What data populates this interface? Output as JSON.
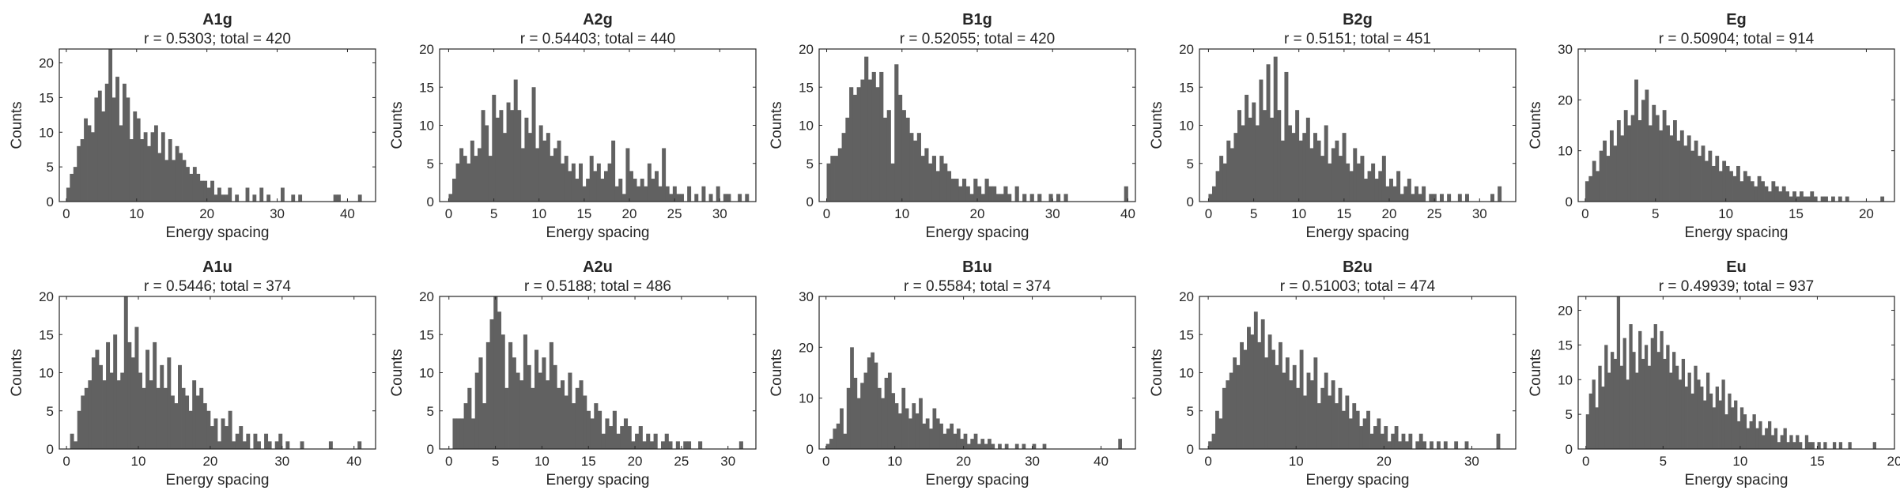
{
  "colors": {
    "bar": "#616161",
    "axis": "#262626",
    "background": "#ffffff"
  },
  "chart_data": [
    {
      "type": "bar",
      "title": "A1g",
      "subtitle": "r = 0.5303; total = 420",
      "xlabel": "Energy spacing",
      "ylabel": "Counts",
      "xlim": [
        -1,
        44
      ],
      "ylim": [
        0,
        22
      ],
      "xticks": [
        0,
        10,
        20,
        30,
        40
      ],
      "yticks": [
        0,
        5,
        10,
        15,
        20
      ],
      "bin_start": 0,
      "bin_width": 0.5,
      "values": [
        2,
        4,
        5,
        8,
        9,
        12,
        11,
        10,
        15,
        16,
        13,
        17,
        22,
        15,
        18,
        11,
        17,
        15,
        9,
        13,
        12,
        9,
        10,
        8,
        10,
        11,
        7,
        10,
        6,
        9,
        6,
        8,
        7,
        6,
        5,
        4,
        5,
        4,
        3,
        3,
        2,
        3,
        1,
        2,
        1,
        1,
        2,
        0,
        1,
        0,
        0,
        2,
        0,
        1,
        0,
        2,
        0,
        1,
        0,
        0,
        0,
        2,
        0,
        0,
        1,
        0,
        1,
        0,
        0,
        0,
        0,
        0,
        0,
        0,
        0,
        0,
        1,
        1,
        0,
        0,
        0,
        0,
        0,
        1
      ]
    },
    {
      "type": "bar",
      "title": "A2g",
      "subtitle": "r = 0.54403; total = 440",
      "xlabel": "Energy spacing",
      "ylabel": "Counts",
      "xlim": [
        -1,
        34
      ],
      "ylim": [
        0,
        20
      ],
      "xticks": [
        0,
        5,
        10,
        15,
        20,
        25,
        30
      ],
      "yticks": [
        0,
        5,
        10,
        15,
        20
      ],
      "bin_start": 0,
      "bin_width": 0.4,
      "values": [
        1,
        3,
        5,
        7,
        6,
        5,
        8,
        6,
        7,
        12,
        10,
        6,
        14,
        11,
        12,
        9,
        13,
        12,
        16,
        12,
        7,
        11,
        9,
        15,
        7,
        10,
        8,
        9,
        6,
        7,
        8,
        5,
        6,
        4,
        5,
        3,
        5,
        2,
        3,
        6,
        4,
        5,
        3,
        4,
        5,
        8,
        2,
        3,
        1,
        7,
        4,
        3,
        2,
        3,
        2,
        5,
        3,
        4,
        2,
        7,
        2,
        1,
        2,
        1,
        1,
        0,
        2,
        0,
        1,
        0,
        2,
        0,
        1,
        0,
        2,
        0,
        1,
        1,
        0,
        0,
        1,
        0,
        1
      ]
    },
    {
      "type": "bar",
      "title": "B1g",
      "subtitle": "r = 0.52055; total = 420",
      "xlabel": "Energy spacing",
      "ylabel": "Counts",
      "xlim": [
        -1,
        41
      ],
      "ylim": [
        0,
        20
      ],
      "xticks": [
        0,
        10,
        20,
        30,
        40
      ],
      "yticks": [
        0,
        5,
        10,
        15,
        20
      ],
      "bin_start": 0,
      "bin_width": 0.5,
      "values": [
        5,
        6,
        6,
        7,
        9,
        11,
        15,
        14,
        15,
        16,
        19,
        16,
        17,
        15,
        17,
        11,
        12,
        5,
        18,
        14,
        12,
        11,
        9,
        8,
        9,
        6,
        7,
        5,
        6,
        4,
        6,
        5,
        4,
        3,
        3,
        2,
        3,
        2,
        1,
        3,
        2,
        1,
        3,
        2,
        2,
        1,
        1,
        2,
        1,
        0,
        2,
        0,
        1,
        0,
        1,
        0,
        1,
        0,
        0,
        1,
        0,
        1,
        0,
        1,
        0,
        0,
        0,
        0,
        0,
        0,
        0,
        0,
        0,
        0,
        0,
        0,
        0,
        0,
        0,
        2
      ]
    },
    {
      "type": "bar",
      "title": "B2g",
      "subtitle": "r = 0.5151; total = 451",
      "xlabel": "Energy spacing",
      "ylabel": "Counts",
      "xlim": [
        -1,
        34
      ],
      "ylim": [
        0,
        20
      ],
      "xticks": [
        0,
        5,
        10,
        15,
        20,
        25,
        30
      ],
      "yticks": [
        0,
        5,
        10,
        15,
        20
      ],
      "bin_start": 0,
      "bin_width": 0.4,
      "values": [
        1,
        2,
        4,
        6,
        5,
        8,
        7,
        9,
        12,
        10,
        14,
        11,
        13,
        10,
        16,
        12,
        18,
        11,
        19,
        12,
        8,
        17,
        10,
        9,
        12,
        8,
        9,
        11,
        7,
        9,
        8,
        6,
        10,
        5,
        7,
        8,
        6,
        9,
        5,
        4,
        7,
        5,
        6,
        3,
        4,
        5,
        3,
        4,
        6,
        2,
        3,
        2,
        4,
        1,
        2,
        3,
        1,
        2,
        1,
        2,
        0,
        1,
        1,
        0,
        1,
        0,
        1,
        0,
        0,
        1,
        0,
        1,
        0,
        0,
        0,
        0,
        0,
        0,
        1,
        0,
        2
      ]
    },
    {
      "type": "bar",
      "title": "Eg",
      "subtitle": "r = 0.50904; total = 914",
      "xlabel": "Energy spacing",
      "ylabel": "Counts",
      "xlim": [
        -0.5,
        22
      ],
      "ylim": [
        0,
        30
      ],
      "xticks": [
        0,
        5,
        10,
        15,
        20
      ],
      "yticks": [
        0,
        10,
        20,
        30
      ],
      "bin_start": 0,
      "bin_width": 0.25,
      "values": [
        4,
        5,
        8,
        6,
        10,
        12,
        9,
        14,
        11,
        16,
        13,
        18,
        15,
        17,
        24,
        16,
        20,
        22,
        15,
        19,
        17,
        14,
        18,
        15,
        13,
        16,
        12,
        14,
        11,
        13,
        10,
        12,
        9,
        11,
        8,
        10,
        7,
        9,
        6,
        8,
        7,
        6,
        5,
        7,
        4,
        6,
        5,
        4,
        3,
        5,
        4,
        3,
        2,
        4,
        3,
        2,
        3,
        2,
        1,
        2,
        1,
        2,
        1,
        1,
        2,
        1,
        0,
        1,
        1,
        0,
        1,
        0,
        1,
        0,
        1,
        0,
        0,
        0,
        0,
        0,
        0,
        0,
        0,
        0,
        1
      ]
    },
    {
      "type": "bar",
      "title": "A1u",
      "subtitle": "r = 0.5446; total = 374",
      "xlabel": "Energy spacing",
      "ylabel": "Counts",
      "xlim": [
        -1,
        43
      ],
      "ylim": [
        0,
        20
      ],
      "xticks": [
        0,
        10,
        20,
        30,
        40
      ],
      "yticks": [
        0,
        5,
        10,
        15,
        20
      ],
      "bin_start": 0,
      "bin_width": 0.5,
      "values": [
        0,
        2,
        1,
        5,
        7,
        8,
        9,
        12,
        13,
        11,
        9,
        14,
        10,
        15,
        9,
        10,
        20,
        14,
        12,
        16,
        10,
        8,
        13,
        9,
        14,
        8,
        11,
        8,
        12,
        7,
        6,
        11,
        8,
        7,
        5,
        9,
        7,
        8,
        6,
        5,
        3,
        4,
        1,
        4,
        3,
        5,
        1,
        2,
        3,
        1,
        2,
        0,
        2,
        1,
        0,
        2,
        1,
        0,
        1,
        2,
        0,
        1,
        0,
        0,
        0,
        1,
        0,
        0,
        0,
        0,
        0,
        0,
        0,
        1,
        0,
        0,
        0,
        0,
        0,
        0,
        0,
        1
      ]
    },
    {
      "type": "bar",
      "title": "A2u",
      "subtitle": "r = 0.5188; total = 486",
      "xlabel": "Energy spacing",
      "ylabel": "Counts",
      "xlim": [
        -1,
        33
      ],
      "ylim": [
        0,
        20
      ],
      "xticks": [
        0,
        5,
        10,
        15,
        20,
        25,
        30
      ],
      "yticks": [
        0,
        5,
        10,
        15,
        20
      ],
      "bin_start": 0,
      "bin_width": 0.4,
      "values": [
        0,
        4,
        4,
        4,
        6,
        8,
        4,
        10,
        12,
        6,
        14,
        17,
        20,
        18,
        15,
        8,
        14,
        12,
        10,
        9,
        15,
        11,
        8,
        13,
        10,
        12,
        9,
        14,
        11,
        8,
        9,
        7,
        10,
        6,
        8,
        9,
        7,
        5,
        4,
        6,
        5,
        2,
        4,
        3,
        5,
        2,
        3,
        4,
        3,
        1,
        2,
        3,
        1,
        2,
        1,
        2,
        0,
        1,
        2,
        1,
        0,
        1,
        0,
        1,
        1,
        0,
        0,
        1,
        0,
        0,
        0,
        0,
        0,
        0,
        0,
        0,
        0,
        0,
        1
      ]
    },
    {
      "type": "bar",
      "title": "B1u",
      "subtitle": "r = 0.5584; total = 374",
      "xlabel": "Energy spacing",
      "ylabel": "Counts",
      "xlim": [
        -1,
        45
      ],
      "ylim": [
        0,
        30
      ],
      "xticks": [
        0,
        10,
        20,
        30,
        40
      ],
      "yticks": [
        0,
        10,
        20,
        30
      ],
      "bin_start": 0,
      "bin_width": 0.5,
      "values": [
        1,
        2,
        4,
        5,
        8,
        3,
        12,
        20,
        14,
        10,
        13,
        15,
        18,
        19,
        17,
        12,
        10,
        14,
        15,
        11,
        9,
        7,
        12,
        8,
        6,
        9,
        7,
        10,
        5,
        6,
        4,
        8,
        6,
        5,
        3,
        4,
        5,
        3,
        4,
        2,
        3,
        1,
        2,
        3,
        1,
        2,
        1,
        2,
        1,
        0,
        1,
        0,
        1,
        0,
        0,
        1,
        0,
        1,
        0,
        0,
        1,
        0,
        0,
        1,
        0,
        0,
        0,
        0,
        0,
        0,
        0,
        0,
        0,
        0,
        0,
        0,
        0,
        0,
        0,
        0,
        0,
        0,
        0,
        0,
        0,
        2
      ]
    },
    {
      "type": "bar",
      "title": "B2u",
      "subtitle": "r = 0.51003; total = 474",
      "xlabel": "Energy spacing",
      "ylabel": "Counts",
      "xlim": [
        -1,
        35
      ],
      "ylim": [
        0,
        20
      ],
      "xticks": [
        0,
        10,
        20,
        30
      ],
      "yticks": [
        0,
        5,
        10,
        15,
        20
      ],
      "bin_start": 0,
      "bin_width": 0.4,
      "values": [
        1,
        2,
        5,
        4,
        8,
        9,
        10,
        12,
        11,
        14,
        13,
        16,
        15,
        18,
        14,
        17,
        12,
        15,
        13,
        11,
        14,
        10,
        12,
        9,
        11,
        8,
        13,
        7,
        10,
        9,
        12,
        6,
        8,
        10,
        7,
        9,
        6,
        8,
        5,
        7,
        4,
        6,
        5,
        3,
        4,
        5,
        2,
        3,
        4,
        2,
        3,
        1,
        2,
        3,
        1,
        2,
        1,
        2,
        0,
        1,
        2,
        1,
        0,
        1,
        0,
        1,
        0,
        1,
        0,
        0,
        1,
        0,
        0,
        1,
        0,
        0,
        0,
        0,
        0,
        0,
        0,
        0,
        2
      ]
    },
    {
      "type": "bar",
      "title": "Eu",
      "subtitle": "r = 0.49939; total = 937",
      "xlabel": "Energy spacing",
      "ylabel": "Counts",
      "xlim": [
        -0.5,
        20
      ],
      "ylim": [
        0,
        22
      ],
      "xticks": [
        0,
        5,
        10,
        15,
        20
      ],
      "yticks": [
        0,
        5,
        10,
        15,
        20
      ],
      "bin_start": 0,
      "bin_width": 0.2,
      "values": [
        5,
        8,
        10,
        6,
        12,
        9,
        15,
        11,
        14,
        13,
        22,
        12,
        16,
        10,
        18,
        14,
        11,
        17,
        13,
        15,
        12,
        16,
        18,
        14,
        17,
        13,
        15,
        11,
        14,
        12,
        10,
        13,
        9,
        11,
        8,
        12,
        10,
        9,
        7,
        11,
        8,
        6,
        9,
        7,
        10,
        5,
        8,
        6,
        7,
        4,
        6,
        5,
        3,
        4,
        5,
        3,
        4,
        2,
        3,
        4,
        2,
        3,
        1,
        2,
        3,
        1,
        2,
        1,
        2,
        1,
        0,
        2,
        1,
        1,
        0,
        1,
        0,
        1,
        0,
        0,
        1,
        0,
        1,
        0,
        0,
        1,
        0,
        0,
        0,
        0,
        0,
        0,
        0,
        1
      ]
    }
  ]
}
